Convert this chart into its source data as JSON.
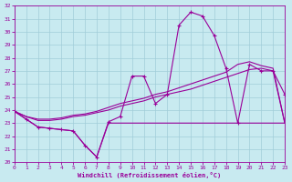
{
  "xlabel": "Windchill (Refroidissement éolien,°C)",
  "xlim": [
    0,
    23
  ],
  "ylim": [
    20,
    32
  ],
  "yticks": [
    20,
    21,
    22,
    23,
    24,
    25,
    26,
    27,
    28,
    29,
    30,
    31,
    32
  ],
  "xticks": [
    0,
    1,
    2,
    3,
    4,
    5,
    6,
    7,
    8,
    9,
    10,
    11,
    12,
    13,
    14,
    15,
    16,
    17,
    18,
    19,
    20,
    21,
    22,
    23
  ],
  "background_color": "#c8eaf0",
  "grid_color": "#a0ccd8",
  "line_color": "#990099",
  "hours": [
    0,
    1,
    2,
    3,
    4,
    5,
    6,
    7,
    8,
    9,
    10,
    11,
    12,
    13,
    14,
    15,
    16,
    17,
    18,
    19,
    20,
    21,
    22,
    23
  ],
  "windchill_curve": [
    23.9,
    23.3,
    22.7,
    22.6,
    22.5,
    22.4,
    21.3,
    20.4,
    23.1,
    23.5,
    26.6,
    26.6,
    24.5,
    25.2,
    30.5,
    31.5,
    31.2,
    29.7,
    27.2,
    23.0,
    27.5,
    27.0,
    27.0,
    25.2
  ],
  "flat_line": [
    23.9,
    23.3,
    22.7,
    22.6,
    22.5,
    22.4,
    21.3,
    20.4,
    23.0,
    23.0,
    23.0,
    23.0,
    23.0,
    23.0,
    23.0,
    23.0,
    23.0,
    23.0,
    23.0,
    23.0,
    23.0,
    23.0,
    23.0,
    23.0
  ],
  "ramp_line1": [
    23.9,
    23.5,
    23.2,
    23.2,
    23.3,
    23.5,
    23.6,
    23.8,
    24.0,
    24.3,
    24.5,
    24.7,
    25.0,
    25.2,
    25.4,
    25.6,
    25.9,
    26.2,
    26.5,
    26.8,
    27.1,
    27.2,
    27.0,
    23.0
  ],
  "ramp_line2": [
    23.9,
    23.5,
    23.3,
    23.3,
    23.4,
    23.6,
    23.7,
    23.9,
    24.2,
    24.5,
    24.7,
    24.9,
    25.2,
    25.4,
    25.7,
    26.0,
    26.3,
    26.6,
    26.9,
    27.5,
    27.7,
    27.4,
    27.2,
    23.0
  ]
}
